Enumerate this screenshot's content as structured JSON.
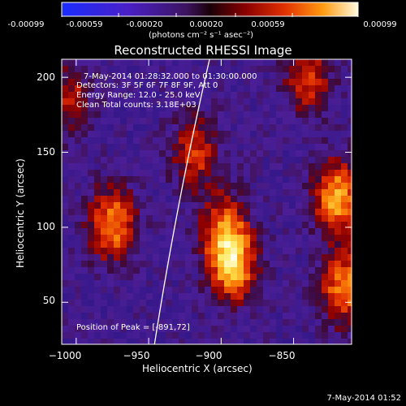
{
  "colorbar": {
    "ticks": [
      "-0.00099",
      "-0.00059",
      "-0.00020",
      "0.00020",
      "0.00059",
      "0.00099"
    ],
    "units_label": "(photons cm⁻² s⁻¹ asec⁻²)"
  },
  "chart_data": {
    "type": "heatmap",
    "title": "Reconstructed RHESSI Image",
    "xlabel": "Heliocentric X (arcsec)",
    "ylabel": "Heliocentric Y (arcsec)",
    "xlim": [
      -1010,
      -810
    ],
    "ylim": [
      22,
      212
    ],
    "xticks": [
      -1000,
      -950,
      -900,
      -850
    ],
    "yticks": [
      50,
      100,
      150,
      200
    ],
    "xtick_labels": [
      "−1000",
      "−950",
      "−900",
      "−850"
    ],
    "ytick_labels": [
      "50",
      "100",
      "150",
      "200"
    ],
    "colorbar_range": [
      -0.00099,
      0.00099
    ],
    "colormap": "red-temperature with blue negative",
    "annotations": [
      "7-May-2014 01:28:32.000 to 01:30:00.000",
      "Detectors: 3F 5F 6F 7F 8F 9F, Att 0",
      "Energy Range: 12.0 - 25.0 keV",
      "Clean     Total counts: 3.18E+03",
      "Position of Peak = [-891,72]"
    ],
    "peak_position": [
      -891,
      72
    ],
    "bright_sources": [
      {
        "x": -892,
        "y": 75,
        "level": 1.0
      },
      {
        "x": -820,
        "y": 120,
        "level": 0.95
      },
      {
        "x": -975,
        "y": 102,
        "level": 0.85
      },
      {
        "x": -815,
        "y": 60,
        "level": 0.85
      },
      {
        "x": -898,
        "y": 100,
        "level": 0.65
      },
      {
        "x": -918,
        "y": 150,
        "level": 0.6
      },
      {
        "x": -840,
        "y": 200,
        "level": 0.6
      },
      {
        "x": -1005,
        "y": 185,
        "level": 0.5
      }
    ],
    "limb_arc": true
  },
  "footer_date": "7-May-2014 01:52"
}
